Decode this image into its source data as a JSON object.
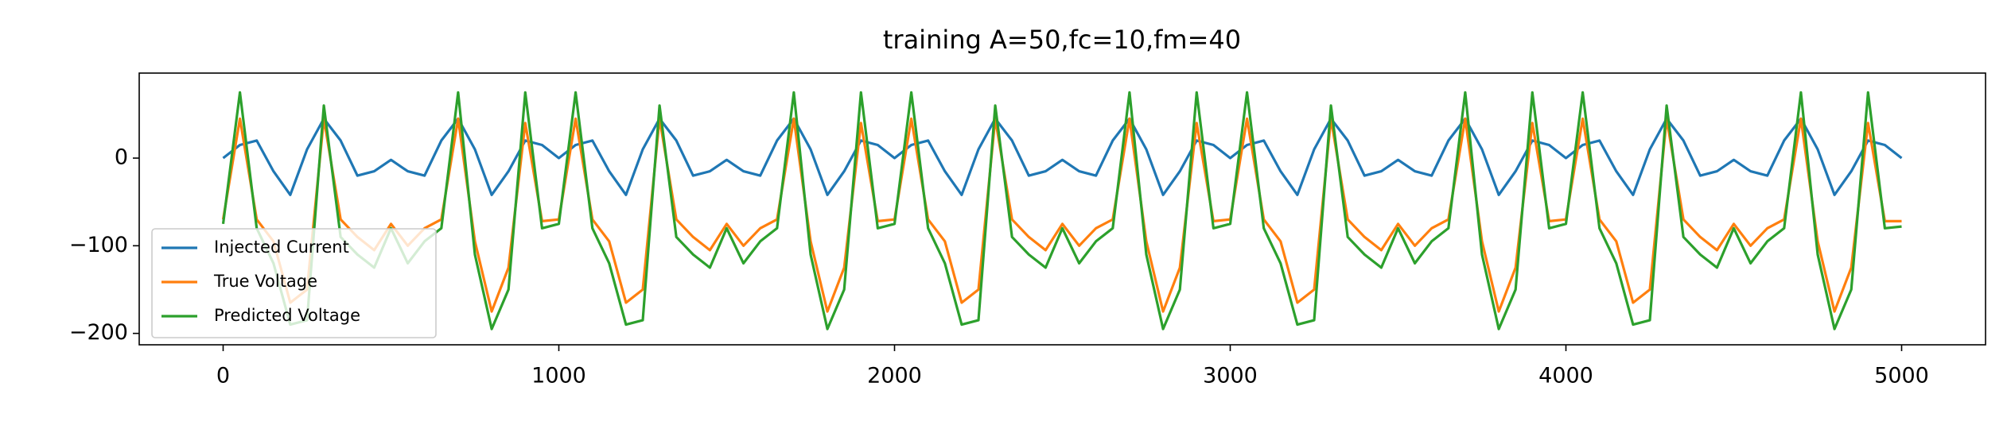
{
  "chart_data": {
    "type": "line",
    "title": "training A=50,fc=10,fm=40",
    "x": [
      0,
      50,
      100,
      150,
      200,
      250,
      300,
      350,
      400,
      450,
      500,
      550,
      600,
      650,
      700,
      750,
      800,
      850,
      900,
      950,
      1000,
      1050,
      1100,
      1150,
      1200,
      1250,
      1300,
      1350,
      1400,
      1450,
      1500,
      1550,
      1600,
      1650,
      1700,
      1750,
      1800,
      1850,
      1900,
      1950,
      2000,
      2050,
      2100,
      2150,
      2200,
      2250,
      2300,
      2350,
      2400,
      2450,
      2500,
      2550,
      2600,
      2650,
      2700,
      2750,
      2800,
      2850,
      2900,
      2950,
      3000,
      3050,
      3100,
      3150,
      3200,
      3250,
      3300,
      3350,
      3400,
      3450,
      3500,
      3550,
      3600,
      3650,
      3700,
      3750,
      3800,
      3850,
      3900,
      3950,
      4000,
      4050,
      4100,
      4150,
      4200,
      4250,
      4300,
      4350,
      4400,
      4450,
      4500,
      4550,
      4600,
      4650,
      4700,
      4750,
      4800,
      4850,
      4900,
      4950,
      5000
    ],
    "series": [
      {
        "name": "Injected Current",
        "color": "#1f77b4",
        "values": [
          0,
          15,
          20,
          -15,
          -42,
          10,
          45,
          20,
          -20,
          -15,
          -2,
          -15,
          -20,
          20,
          45,
          10,
          -42,
          -15,
          20,
          15,
          0,
          15,
          20,
          -15,
          -42,
          10,
          45,
          20,
          -20,
          -15,
          -2,
          -15,
          -20,
          20,
          45,
          10,
          -42,
          -15,
          20,
          15,
          0,
          15,
          20,
          -15,
          -42,
          10,
          45,
          20,
          -20,
          -15,
          -2,
          -15,
          -20,
          20,
          45,
          10,
          -42,
          -15,
          20,
          15,
          0,
          15,
          20,
          -15,
          -42,
          10,
          45,
          20,
          -20,
          -15,
          -2,
          -15,
          -20,
          20,
          45,
          10,
          -42,
          -15,
          20,
          15,
          0,
          15,
          20,
          -15,
          -42,
          10,
          45,
          20,
          -20,
          -15,
          -2,
          -15,
          -20,
          20,
          45,
          10,
          -42,
          -15,
          20,
          15,
          0
        ]
      },
      {
        "name": "True Voltage",
        "color": "#ff7f0e",
        "values": [
          -70,
          45,
          -70,
          -95,
          -165,
          -150,
          45,
          -70,
          -90,
          -105,
          -75,
          -100,
          -80,
          -70,
          45,
          -95,
          -175,
          -125,
          40,
          -72,
          -70,
          45,
          -70,
          -95,
          -165,
          -150,
          45,
          -70,
          -90,
          -105,
          -75,
          -100,
          -80,
          -70,
          45,
          -95,
          -175,
          -125,
          40,
          -72,
          -70,
          45,
          -70,
          -95,
          -165,
          -150,
          45,
          -70,
          -90,
          -105,
          -75,
          -100,
          -80,
          -70,
          45,
          -95,
          -175,
          -125,
          40,
          -72,
          -70,
          45,
          -70,
          -95,
          -165,
          -150,
          45,
          -70,
          -90,
          -105,
          -75,
          -100,
          -80,
          -70,
          45,
          -95,
          -175,
          -125,
          40,
          -72,
          -70,
          45,
          -70,
          -95,
          -165,
          -150,
          45,
          -70,
          -90,
          -105,
          -75,
          -100,
          -80,
          -70,
          45,
          -95,
          -175,
          -125,
          40,
          -72,
          -72
        ]
      },
      {
        "name": "Predicted Voltage",
        "color": "#2ca02c",
        "values": [
          -75,
          75,
          -80,
          -120,
          -190,
          -185,
          60,
          -90,
          -110,
          -125,
          -80,
          -120,
          -95,
          -80,
          75,
          -110,
          -195,
          -150,
          75,
          -80,
          -75,
          75,
          -80,
          -120,
          -190,
          -185,
          60,
          -90,
          -110,
          -125,
          -80,
          -120,
          -95,
          -80,
          75,
          -110,
          -195,
          -150,
          75,
          -80,
          -75,
          75,
          -80,
          -120,
          -190,
          -185,
          60,
          -90,
          -110,
          -125,
          -80,
          -120,
          -95,
          -80,
          75,
          -110,
          -195,
          -150,
          75,
          -80,
          -75,
          75,
          -80,
          -120,
          -190,
          -185,
          60,
          -90,
          -110,
          -125,
          -80,
          -120,
          -95,
          -80,
          75,
          -110,
          -195,
          -150,
          75,
          -80,
          -75,
          75,
          -80,
          -120,
          -190,
          -185,
          60,
          -90,
          -110,
          -125,
          -80,
          -120,
          -95,
          -80,
          75,
          -110,
          -195,
          -150,
          75,
          -80,
          -78
        ]
      }
    ],
    "xlim": [
      -250,
      5250
    ],
    "ylim": [
      -213,
      97
    ],
    "xticks": [
      0,
      1000,
      2000,
      3000,
      4000,
      5000
    ],
    "yticks": [
      {
        "value": -200,
        "label": "−200"
      },
      {
        "value": -100,
        "label": "−100"
      },
      0
    ],
    "legend": "lower left"
  }
}
